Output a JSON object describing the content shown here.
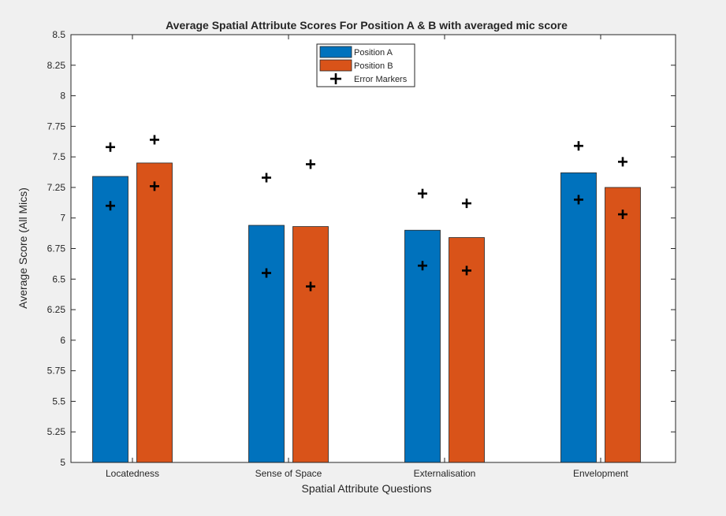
{
  "chart_data": {
    "type": "bar",
    "title": "Average Spatial Attribute Scores For Position A & B with averaged mic score",
    "xlabel": "Spatial Attribute Questions",
    "ylabel": "Average Score (All Mics)",
    "ylim": [
      5,
      8.5
    ],
    "yticks": [
      "5",
      "5.25",
      "5.5",
      "5.75",
      "6",
      "6.25",
      "6.5",
      "6.75",
      "7",
      "7.25",
      "7.5",
      "7.75",
      "8",
      "8.25",
      "8.5"
    ],
    "categories": [
      "Locatedness",
      "Sense of Space",
      "Externalisation",
      "Envelopment"
    ],
    "series": [
      {
        "name": "Position A",
        "color": "#0072bd",
        "values": [
          7.34,
          6.94,
          6.9,
          7.37
        ]
      },
      {
        "name": "Position B",
        "color": "#d95319",
        "values": [
          7.45,
          6.93,
          6.84,
          7.25
        ]
      }
    ],
    "error_markers": {
      "name": "Error Markers",
      "color": "#000000",
      "series": [
        {
          "low": [
            7.1,
            6.55,
            6.61,
            7.15
          ],
          "high": [
            7.58,
            7.33,
            7.2,
            7.59
          ]
        },
        {
          "low": [
            7.26,
            6.44,
            6.57,
            7.03
          ],
          "high": [
            7.64,
            7.44,
            7.12,
            7.46
          ]
        }
      ]
    },
    "legend_position": "top-center",
    "grid": false
  }
}
